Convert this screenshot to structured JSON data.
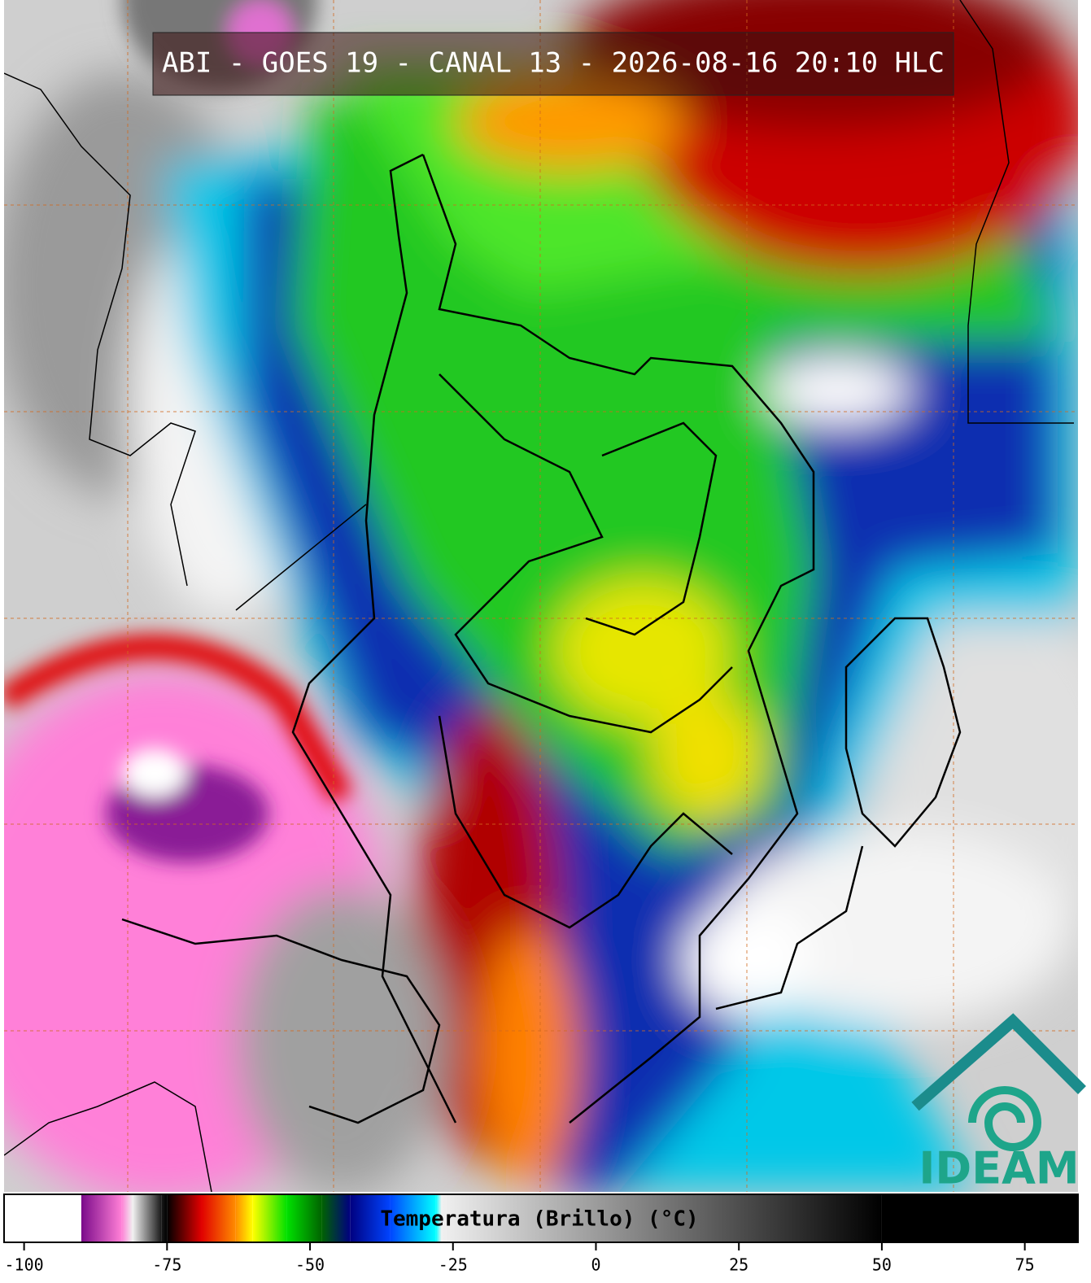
{
  "title": "ABI - GOES 19 - CANAL 13 - 2026-08-16 20:10 HLC",
  "colorbar": {
    "label": "Temperatura (Brillo) (°C)",
    "xlim": [
      -103.5,
      84.3
    ],
    "xticks": [
      -100,
      -75,
      -50,
      -25,
      0,
      25,
      50,
      75
    ],
    "colormap": [
      {
        "value": -103.5,
        "color": "#ffffff"
      },
      {
        "value": -90,
        "color": "#ffffff"
      },
      {
        "value": -90,
        "color": "#7a0a8a"
      },
      {
        "value": -83,
        "color": "#ff7fd6"
      },
      {
        "value": -81,
        "color": "#f0f0f0"
      },
      {
        "value": -76,
        "color": "#1a1a1a"
      },
      {
        "value": -75,
        "color": "#000000"
      },
      {
        "value": -69,
        "color": "#e00000"
      },
      {
        "value": -63,
        "color": "#ff8c00"
      },
      {
        "value": -60,
        "color": "#ffff00"
      },
      {
        "value": -54,
        "color": "#00e000"
      },
      {
        "value": -48,
        "color": "#006400"
      },
      {
        "value": -43,
        "color": "#000080"
      },
      {
        "value": -36,
        "color": "#0044ff"
      },
      {
        "value": -28,
        "color": "#00ffff"
      },
      {
        "value": -27,
        "color": "#f0f0f0"
      },
      {
        "value": 50,
        "color": "#000000"
      },
      {
        "value": 84.3,
        "color": "#000000"
      }
    ]
  },
  "logo_text": "IDEAM"
}
